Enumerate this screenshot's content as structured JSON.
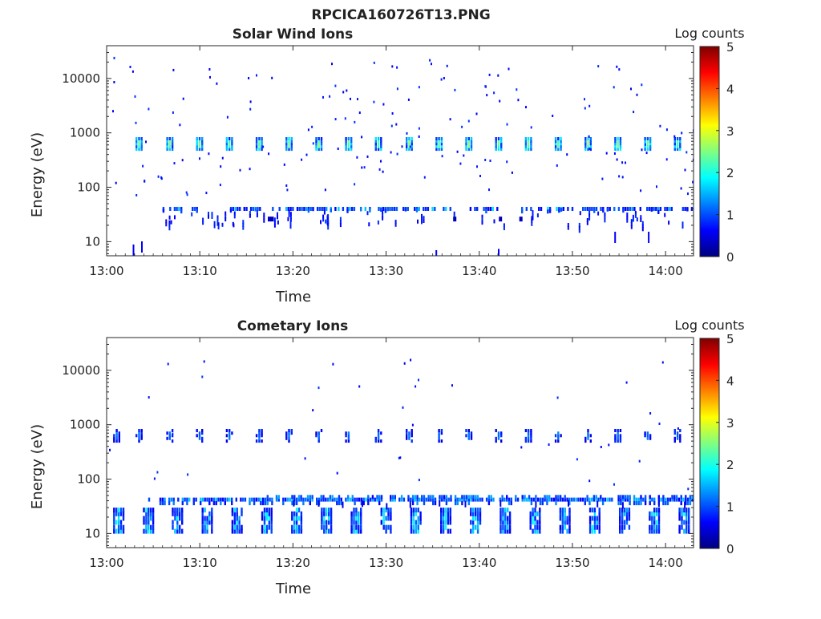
{
  "figure_title": "RPCICA160726T13.PNG",
  "colors": {
    "colormap": [
      "#00007f",
      "#0000ff",
      "#0080ff",
      "#00ffff",
      "#80ff80",
      "#ffff00",
      "#ff8000",
      "#ff0000",
      "#7f0000"
    ]
  },
  "chart_data": [
    {
      "type": "heatmap",
      "title": "Solar Wind Ions",
      "xlabel": "Time",
      "ylabel": "Energy (eV)",
      "x_ticks": [
        "13:00",
        "13:10",
        "13:20",
        "13:30",
        "13:40",
        "13:50",
        "14:00"
      ],
      "y_ticks": [
        "10",
        "100",
        "1000",
        "10000"
      ],
      "y_scale": "log",
      "x_range_minutes": [
        0,
        63
      ],
      "y_range_eV": [
        5.5,
        40000
      ],
      "colorbar": {
        "label": "Log counts",
        "ticks": [
          "0",
          "1",
          "2",
          "3",
          "4",
          "5"
        ],
        "range": [
          0,
          5
        ]
      },
      "features": {
        "proton_beam": {
          "energy_eV": 650,
          "peak_log_counts": 2.6,
          "times_minutes": [
            3.1,
            6.4,
            9.6,
            12.8,
            16.0,
            19.2,
            22.4,
            25.6,
            28.8,
            32.1,
            35.3,
            38.5,
            41.7,
            44.9,
            48.1,
            51.3,
            54.5,
            57.7,
            60.9
          ]
        },
        "low_energy_band": {
          "energy_eV": [
            35,
            45
          ],
          "start_minute": 6.0,
          "peak_log_counts": 1.8
        },
        "band_segments_minutes": [
          [
            6.0,
            10.0
          ],
          [
            13.0,
            17.0
          ],
          [
            17.5,
            24.5
          ],
          [
            24.8,
            27.0
          ],
          [
            27.2,
            37.0
          ],
          [
            38.0,
            42.0
          ],
          [
            44.5,
            46.0
          ],
          [
            46.3,
            50.0
          ],
          [
            50.8,
            56.8
          ],
          [
            57.2,
            63.0
          ]
        ]
      }
    },
    {
      "type": "heatmap",
      "title": "Cometary Ions",
      "xlabel": "Time",
      "ylabel": "Energy (eV)",
      "x_ticks": [
        "13:00",
        "13:10",
        "13:20",
        "13:30",
        "13:40",
        "13:50",
        "14:00"
      ],
      "y_ticks": [
        "10",
        "100",
        "1000",
        "10000"
      ],
      "y_scale": "log",
      "x_range_minutes": [
        0,
        63
      ],
      "y_range_eV": [
        5.5,
        40000
      ],
      "colorbar": {
        "label": "Log counts",
        "ticks": [
          "0",
          "1",
          "2",
          "3",
          "4",
          "5"
        ],
        "range": [
          0,
          5
        ]
      },
      "features": {
        "proton_beam": {
          "energy_eV": 650,
          "peak_log_counts": 1.3,
          "times_minutes": [
            0.7,
            3.1,
            6.4,
            9.6,
            12.8,
            16.0,
            19.2,
            22.4,
            25.6,
            28.8,
            32.1,
            35.3,
            38.5,
            41.7,
            44.9,
            48.1,
            51.3,
            54.5,
            57.7,
            60.9
          ]
        },
        "band_45eV": {
          "energy_eV": [
            38,
            50
          ],
          "start_minute": 2.3,
          "peak_log_counts": 1.7
        },
        "low_energy_bursts": {
          "energy_eV": [
            10,
            28
          ],
          "peak_log_counts": 1.8,
          "times_minutes": [
            0.7,
            3.9,
            7.0,
            10.2,
            13.4,
            16.6,
            19.8,
            23.0,
            26.2,
            29.4,
            32.6,
            35.8,
            39.0,
            42.2,
            45.4,
            48.6,
            51.8,
            55.0,
            58.2,
            61.4
          ]
        }
      }
    }
  ]
}
